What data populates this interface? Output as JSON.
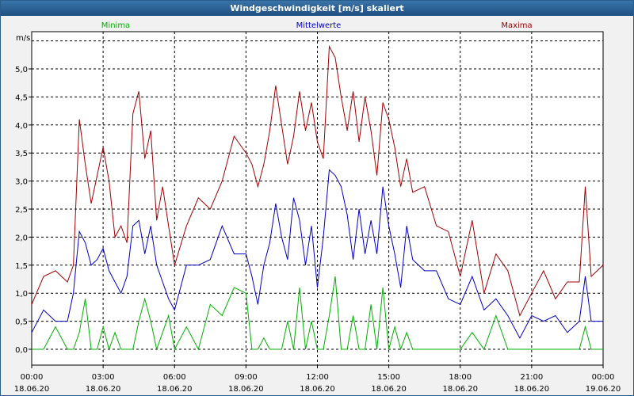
{
  "window": {
    "title": "Windgeschwindigkeit [m/s] skaliert"
  },
  "colors": {
    "minima": "#00b000",
    "mittelwerte": "#0000c0",
    "maxima": "#a00000",
    "grid": "#000000"
  },
  "chart_data": {
    "type": "line",
    "title": "Windgeschwindigkeit [m/s] skaliert",
    "ylabel": "m/s",
    "xlabel": "",
    "ylim": [
      0,
      5.6
    ],
    "xlim": [
      0,
      24
    ],
    "grid": true,
    "legend_placement": "top",
    "yticks": [
      {
        "v": 0.0,
        "label": "0,0"
      },
      {
        "v": 0.5,
        "label": "0,5"
      },
      {
        "v": 1.0,
        "label": "1,0"
      },
      {
        "v": 1.5,
        "label": "1,5"
      },
      {
        "v": 2.0,
        "label": "2,0"
      },
      {
        "v": 2.5,
        "label": "2,5"
      },
      {
        "v": 3.0,
        "label": "3,0"
      },
      {
        "v": 3.5,
        "label": "3,5"
      },
      {
        "v": 4.0,
        "label": "4,0"
      },
      {
        "v": 4.5,
        "label": "4,5"
      },
      {
        "v": 5.0,
        "label": "5,0"
      }
    ],
    "xticks": [
      {
        "h": 0,
        "time": "00:00",
        "date": "18.06.20"
      },
      {
        "h": 3,
        "time": "03:00",
        "date": "18.06.20"
      },
      {
        "h": 6,
        "time": "06:00",
        "date": "18.06.20"
      },
      {
        "h": 9,
        "time": "09:00",
        "date": "18.06.20"
      },
      {
        "h": 12,
        "time": "12:00",
        "date": "18.06.20"
      },
      {
        "h": 15,
        "time": "15:00",
        "date": "18.06.20"
      },
      {
        "h": 18,
        "time": "18:00",
        "date": "18.06.20"
      },
      {
        "h": 21,
        "time": "21:00",
        "date": "18.06.20"
      },
      {
        "h": 24,
        "time": "00:00",
        "date": "19.06.20"
      }
    ],
    "x": [
      0,
      0.5,
      1,
      1.5,
      1.75,
      2,
      2.25,
      2.5,
      2.75,
      3,
      3.25,
      3.5,
      3.75,
      4,
      4.25,
      4.5,
      4.75,
      5,
      5.25,
      5.5,
      5.75,
      6,
      6.5,
      7,
      7.5,
      8,
      8.5,
      9,
      9.25,
      9.5,
      9.75,
      10,
      10.25,
      10.5,
      10.75,
      11,
      11.25,
      11.5,
      11.75,
      12,
      12.25,
      12.5,
      12.75,
      13,
      13.25,
      13.5,
      13.75,
      14,
      14.25,
      14.5,
      14.75,
      15,
      15.25,
      15.5,
      15.75,
      16,
      16.5,
      17,
      17.5,
      18,
      18.5,
      19,
      19.5,
      20,
      20.5,
      21,
      21.5,
      22,
      22.5,
      23,
      23.25,
      23.5,
      24
    ],
    "series": [
      {
        "name": "Maxima",
        "values": [
          0.8,
          1.3,
          1.4,
          1.2,
          1.5,
          4.1,
          3.3,
          2.6,
          3.1,
          3.6,
          3.0,
          2.0,
          2.2,
          1.9,
          4.2,
          4.6,
          3.4,
          3.9,
          2.3,
          2.9,
          2.2,
          1.5,
          2.2,
          2.7,
          2.5,
          3.0,
          3.8,
          3.5,
          3.3,
          2.9,
          3.3,
          3.9,
          4.7,
          4.0,
          3.3,
          3.8,
          4.6,
          3.9,
          4.4,
          3.7,
          3.4,
          5.4,
          5.2,
          4.5,
          3.9,
          4.6,
          3.7,
          4.5,
          3.9,
          3.1,
          4.4,
          4.1,
          3.6,
          2.9,
          3.4,
          2.8,
          2.9,
          2.2,
          2.1,
          1.3,
          2.3,
          1.0,
          1.7,
          1.4,
          0.6,
          1.0,
          1.4,
          0.9,
          1.2,
          1.2,
          2.9,
          1.3,
          1.5
        ]
      },
      {
        "name": "Mittelwerte",
        "values": [
          0.3,
          0.7,
          0.5,
          0.5,
          1.0,
          2.1,
          1.9,
          1.5,
          1.6,
          1.8,
          1.4,
          1.2,
          1.0,
          1.3,
          2.2,
          2.3,
          1.7,
          2.2,
          1.5,
          1.2,
          0.9,
          0.7,
          1.5,
          1.5,
          1.6,
          2.2,
          1.7,
          1.7,
          1.3,
          0.8,
          1.5,
          1.9,
          2.6,
          2.0,
          1.6,
          2.7,
          2.3,
          1.5,
          2.2,
          1.1,
          2.0,
          3.2,
          3.1,
          2.9,
          2.4,
          1.6,
          2.5,
          1.7,
          2.3,
          1.7,
          2.9,
          2.2,
          1.7,
          1.1,
          2.2,
          1.6,
          1.4,
          1.4,
          0.9,
          0.8,
          1.3,
          0.7,
          0.9,
          0.6,
          0.2,
          0.6,
          0.5,
          0.6,
          0.3,
          0.5,
          1.3,
          0.5,
          0.5
        ]
      },
      {
        "name": "Minima",
        "values": [
          0.0,
          0.0,
          0.4,
          0.0,
          0.0,
          0.3,
          0.9,
          0.0,
          0.0,
          0.4,
          0.0,
          0.3,
          0.0,
          0.0,
          0.0,
          0.5,
          0.9,
          0.5,
          0.0,
          0.3,
          0.6,
          0.0,
          0.4,
          0.0,
          0.8,
          0.6,
          1.1,
          1.0,
          0.0,
          0.0,
          0.2,
          0.0,
          0.0,
          0.0,
          0.5,
          0.0,
          1.1,
          0.0,
          0.5,
          0.0,
          0.0,
          0.6,
          1.3,
          0.0,
          0.0,
          0.6,
          0.0,
          0.0,
          0.8,
          0.0,
          1.1,
          0.0,
          0.4,
          0.0,
          0.3,
          0.0,
          0.0,
          0.0,
          0.0,
          0.0,
          0.3,
          0.0,
          0.6,
          0.0,
          0.0,
          0.0,
          0.0,
          0.0,
          0.0,
          0.0,
          0.4,
          0.0,
          0.0
        ]
      }
    ]
  }
}
